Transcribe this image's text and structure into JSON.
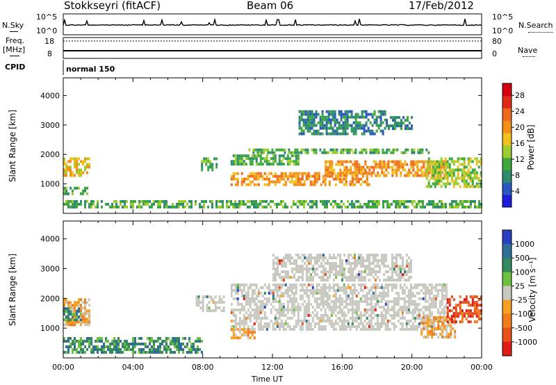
{
  "header": {
    "title": "Stokkseyri (fitACF)",
    "beam": "Beam 06",
    "date": "17/Feb/2012"
  },
  "aux_panel": {
    "nsky_label": "N.Sky",
    "nsky_ticks": [
      "10^5",
      "10^0"
    ],
    "nsearch_label": "N.Search",
    "nsearch_ticks": [
      "10^5",
      "10^0"
    ],
    "freq_label_1": "Freq.",
    "freq_label_2": "[MHz]",
    "freq_ticks": [
      "18",
      "8"
    ],
    "nave_label": "Nave",
    "nave_ticks": [
      "80",
      "0"
    ],
    "cpid_label": "CPID",
    "cpid_value": "normal 150"
  },
  "chart_data": [
    {
      "type": "heatmap",
      "panel": "power",
      "ylabel": "Slant Range [km]",
      "yticks": [
        "1000",
        "2000",
        "3000",
        "4000"
      ],
      "ylim": [
        0,
        4600
      ],
      "xlim_hours": [
        0,
        24
      ],
      "colorbar_label": "Power [dB]",
      "colorbar_ticks": [
        "4",
        "8",
        "12",
        "16",
        "20",
        "24",
        "28"
      ],
      "colorbar_range": [
        0,
        31
      ],
      "colors": [
        "#1d1ddb",
        "#2a58c0",
        "#2c8c6c",
        "#3fa83c",
        "#9ccc30",
        "#f0c020",
        "#f39018",
        "#ef6a1c",
        "#e02a18",
        "#d40010"
      ],
      "regions": [
        {
          "t": [
            0.0,
            1.5
          ],
          "r": [
            1300,
            1900
          ],
          "value": 18
        },
        {
          "t": [
            0.0,
            1.4
          ],
          "r": [
            650,
            900
          ],
          "value": 9
        },
        {
          "t": [
            7.9,
            8.8
          ],
          "r": [
            1500,
            1900
          ],
          "value": 10
        },
        {
          "t": [
            9.6,
            13.5
          ],
          "r": [
            1700,
            2000
          ],
          "value": 12
        },
        {
          "t": [
            9.6,
            17.5
          ],
          "r": [
            950,
            1400
          ],
          "value": 20
        },
        {
          "t": [
            10.5,
            21.0
          ],
          "r": [
            2050,
            2200
          ],
          "value": 12
        },
        {
          "t": [
            15.0,
            22.0
          ],
          "r": [
            1250,
            1800
          ],
          "value": 22
        },
        {
          "t": [
            13.5,
            18.5
          ],
          "r": [
            2700,
            3500
          ],
          "value": 8
        },
        {
          "t": [
            18.5,
            20.0
          ],
          "r": [
            2900,
            3300
          ],
          "value": 8
        },
        {
          "t": [
            20.8,
            24.0
          ],
          "r": [
            950,
            1900
          ],
          "value": 14
        },
        {
          "t": [
            0.0,
            24.0
          ],
          "r": [
            200,
            450
          ],
          "value": 9
        }
      ]
    },
    {
      "type": "heatmap",
      "panel": "velocity",
      "ylabel": "Slant Range [km]",
      "yticks": [
        "1000",
        "2000",
        "3000",
        "4000"
      ],
      "ylim": [
        0,
        4600
      ],
      "xlim_hours": [
        0,
        24
      ],
      "xticks": [
        "00:00",
        "04:00",
        "08:00",
        "12:00",
        "16:00",
        "20:00",
        "00:00"
      ],
      "xlabel": "Time UT",
      "colorbar_label": "Velocity [m s⁻¹]",
      "colorbar_ticks": [
        "1000",
        "500",
        "100",
        "25",
        "-25",
        "-100",
        "-500",
        "-1000"
      ],
      "colors": [
        "#2840c0",
        "#2e6e98",
        "#338a60",
        "#6cc13e",
        "#c8c8c0",
        "#f5a020",
        "#f07c1c",
        "#e8501a",
        "#e01a14"
      ],
      "regions": [
        {
          "t": [
            0.0,
            1.5
          ],
          "r": [
            1100,
            2000
          ],
          "value_class": "-100"
        },
        {
          "t": [
            0.0,
            1.0
          ],
          "r": [
            1300,
            1700
          ],
          "value_class": "100"
        },
        {
          "t": [
            7.6,
            9.2
          ],
          "r": [
            1600,
            2100
          ],
          "value_class": "0"
        },
        {
          "t": [
            9.6,
            22.0
          ],
          "r": [
            1000,
            2500
          ],
          "value_class": "0"
        },
        {
          "t": [
            12.0,
            20.0
          ],
          "r": [
            2600,
            3500
          ],
          "value_class": "0"
        },
        {
          "t": [
            9.6,
            11.0
          ],
          "r": [
            700,
            1000
          ],
          "value_class": "-100"
        },
        {
          "t": [
            20.5,
            22.5
          ],
          "r": [
            700,
            1400
          ],
          "value_class": "-100"
        },
        {
          "t": [
            22.0,
            24.0
          ],
          "r": [
            1200,
            2100
          ],
          "value_class": "-500"
        },
        {
          "t": [
            0.0,
            8.0
          ],
          "r": [
            200,
            700
          ],
          "value_class": "100"
        }
      ]
    }
  ]
}
